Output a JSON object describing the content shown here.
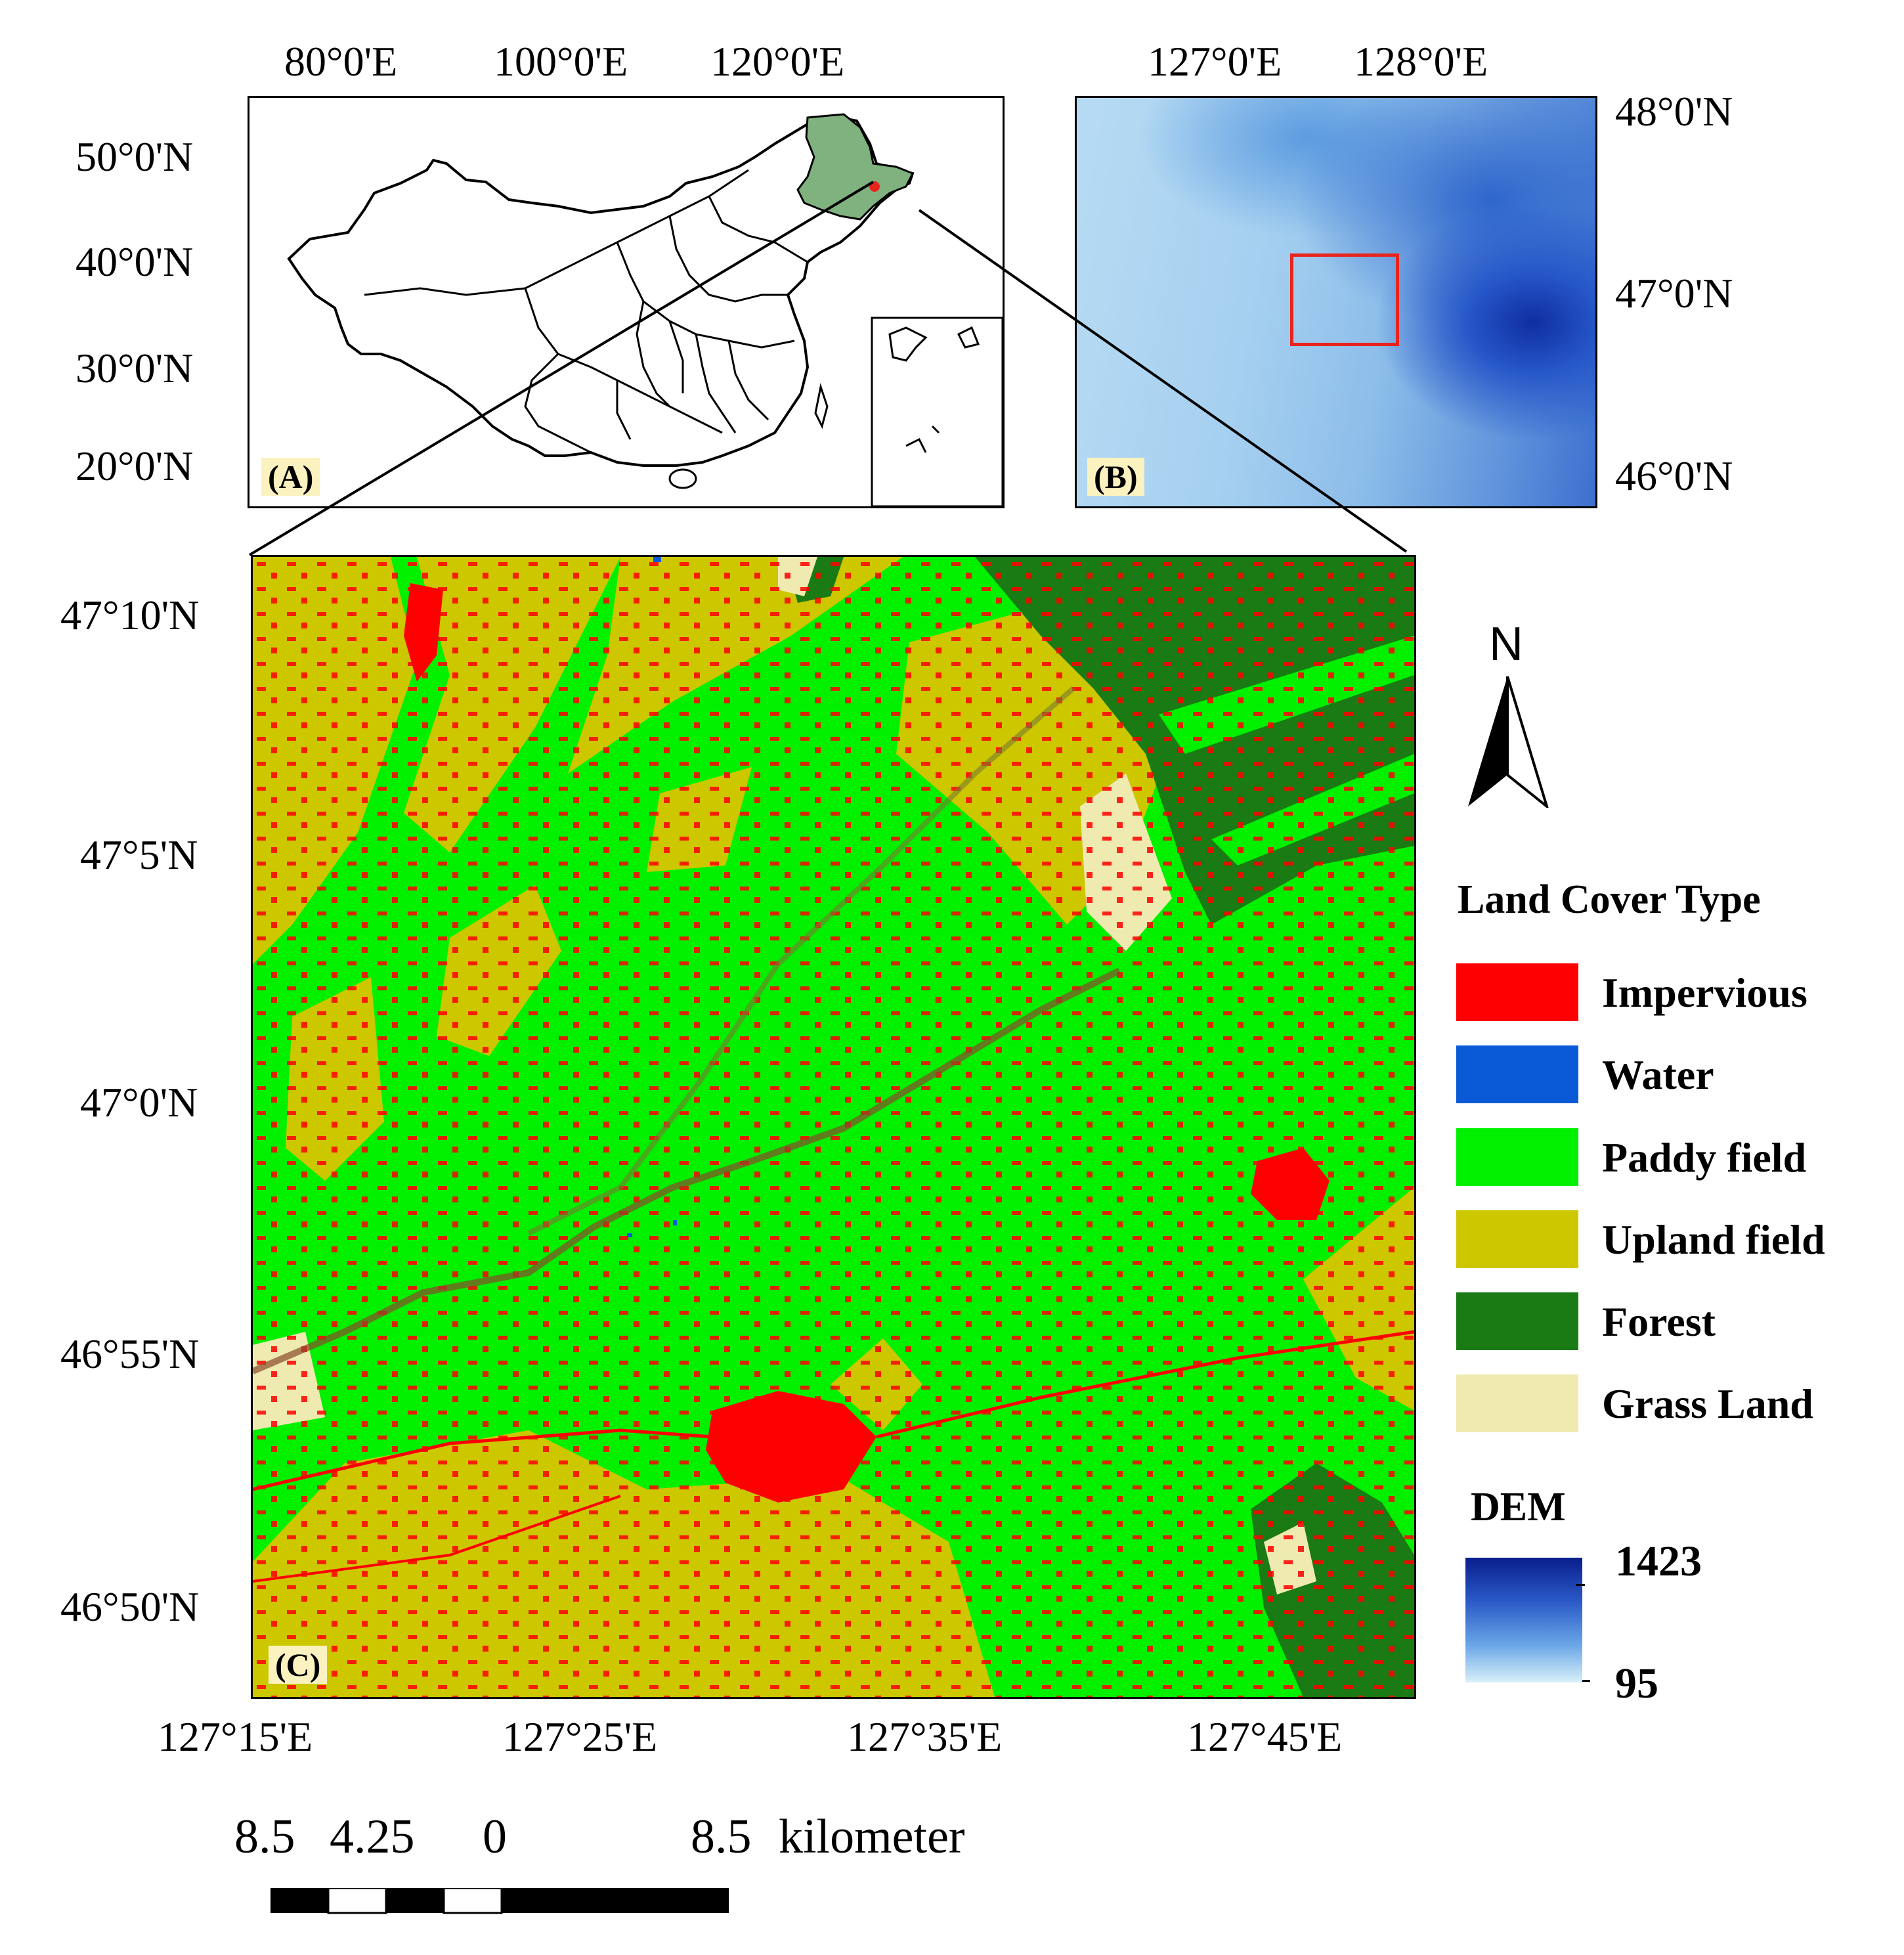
{
  "panel_a": {
    "label": "(A)",
    "lon_labels": [
      "80°0'E",
      "100°0'E",
      "120°0'E"
    ],
    "lat_labels": [
      "50°0'N",
      "40°0'N",
      "30°0'N",
      "20°0'N"
    ],
    "highlight_color": "#7fb27f"
  },
  "panel_b": {
    "label": "(B)",
    "lon_labels": [
      "127°0'E",
      "128°0'E"
    ],
    "lat_labels": [
      "48°0'N",
      "47°0'N",
      "46°0'N"
    ],
    "box_color": "#e8241d"
  },
  "panel_c": {
    "label": "(C)",
    "lon_labels": [
      "127°15'E",
      "127°25'E",
      "127°35'E",
      "127°45'E"
    ],
    "lat_labels": [
      "47°10'N",
      "47°5'N",
      "47°0'N",
      "46°55'N",
      "46°50'N"
    ]
  },
  "north_arrow": {
    "letter": "N"
  },
  "legend": {
    "title": "Land Cover Type",
    "items": [
      {
        "label": "Impervious",
        "color": "#ff0000"
      },
      {
        "label": "Water",
        "color": "#0a5ad8"
      },
      {
        "label": "Paddy field",
        "color": "#00f000"
      },
      {
        "label": "Upland field",
        "color": "#cdc700"
      },
      {
        "label": "Forest",
        "color": "#1a7a14"
      },
      {
        "label": "Grass Land",
        "color": "#efeab0"
      }
    ]
  },
  "dem": {
    "title": "DEM",
    "max": "1423",
    "min": "95",
    "color_high": "#0a1e8c",
    "color_low": "#d9f0fa"
  },
  "scale_bar": {
    "labels": [
      "8.5",
      "4.25",
      "0",
      "8.5"
    ],
    "unit": "kilometer"
  }
}
